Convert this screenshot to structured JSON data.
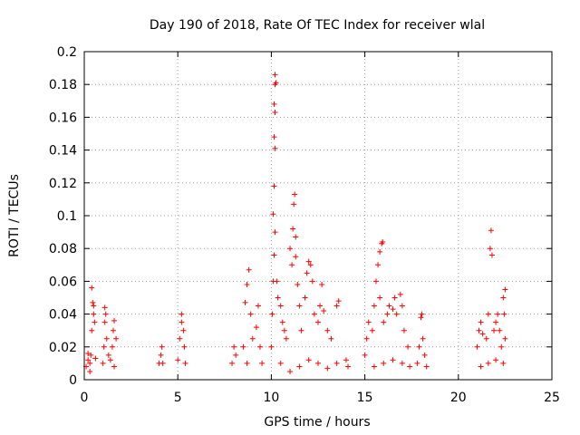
{
  "chart_data": {
    "type": "scatter",
    "title": "Day 190 of 2018, Rate Of TEC Index for receiver wlal",
    "xlabel": "GPS time / hours",
    "ylabel": "ROTI / TECUs",
    "xlim": [
      0,
      25
    ],
    "ylim": [
      0,
      0.2
    ],
    "x_ticks": [
      0,
      5,
      10,
      15,
      20,
      25
    ],
    "y_ticks": [
      0,
      0.02,
      0.04,
      0.06,
      0.08,
      0.1,
      0.12,
      0.14,
      0.16,
      0.18,
      0.2
    ],
    "grid": true,
    "marker": "+",
    "color": "#ff0000",
    "series": [
      {
        "name": "ROTI",
        "points": [
          [
            0.1,
            0.008
          ],
          [
            0.2,
            0.012
          ],
          [
            0.3,
            0.01
          ],
          [
            0.35,
            0.015
          ],
          [
            0.4,
            0.03
          ],
          [
            0.45,
            0.047
          ],
          [
            0.4,
            0.056
          ],
          [
            0.5,
            0.045
          ],
          [
            0.5,
            0.04
          ],
          [
            0.55,
            0.035
          ],
          [
            0.3,
            0.005
          ],
          [
            0.6,
            0.013
          ],
          [
            0.2,
            0.016
          ],
          [
            1.0,
            0.01
          ],
          [
            1.05,
            0.02
          ],
          [
            1.1,
            0.035
          ],
          [
            1.1,
            0.044
          ],
          [
            1.15,
            0.04
          ],
          [
            1.2,
            0.025
          ],
          [
            1.3,
            0.015
          ],
          [
            1.4,
            0.012
          ],
          [
            1.5,
            0.02
          ],
          [
            1.55,
            0.03
          ],
          [
            1.6,
            0.036
          ],
          [
            1.7,
            0.025
          ],
          [
            1.6,
            0.008
          ],
          [
            4.0,
            0.01
          ],
          [
            4.1,
            0.015
          ],
          [
            4.15,
            0.02
          ],
          [
            4.2,
            0.01
          ],
          [
            5.0,
            0.012
          ],
          [
            5.1,
            0.025
          ],
          [
            5.2,
            0.035
          ],
          [
            5.2,
            0.04
          ],
          [
            5.3,
            0.03
          ],
          [
            5.35,
            0.02
          ],
          [
            5.4,
            0.01
          ],
          [
            7.9,
            0.01
          ],
          [
            8.0,
            0.02
          ],
          [
            8.1,
            0.015
          ],
          [
            8.5,
            0.02
          ],
          [
            8.6,
            0.047
          ],
          [
            8.7,
            0.058
          ],
          [
            8.8,
            0.067
          ],
          [
            8.9,
            0.04
          ],
          [
            9.0,
            0.025
          ],
          [
            8.7,
            0.01
          ],
          [
            9.2,
            0.032
          ],
          [
            9.3,
            0.045
          ],
          [
            9.4,
            0.02
          ],
          [
            9.5,
            0.01
          ],
          [
            10.0,
            0.02
          ],
          [
            10.05,
            0.04
          ],
          [
            10.1,
            0.06
          ],
          [
            10.15,
            0.076
          ],
          [
            10.2,
            0.09
          ],
          [
            10.1,
            0.101
          ],
          [
            10.15,
            0.118
          ],
          [
            10.2,
            0.141
          ],
          [
            10.15,
            0.148
          ],
          [
            10.2,
            0.163
          ],
          [
            10.15,
            0.168
          ],
          [
            10.2,
            0.18
          ],
          [
            10.25,
            0.181
          ],
          [
            10.2,
            0.186
          ],
          [
            10.3,
            0.06
          ],
          [
            10.35,
            0.05
          ],
          [
            10.5,
            0.045
          ],
          [
            10.6,
            0.035
          ],
          [
            10.7,
            0.03
          ],
          [
            10.8,
            0.025
          ],
          [
            11.0,
            0.08
          ],
          [
            11.1,
            0.07
          ],
          [
            11.15,
            0.092
          ],
          [
            11.2,
            0.107
          ],
          [
            11.25,
            0.113
          ],
          [
            11.3,
            0.087
          ],
          [
            11.3,
            0.075
          ],
          [
            11.4,
            0.058
          ],
          [
            11.5,
            0.045
          ],
          [
            11.6,
            0.03
          ],
          [
            11.8,
            0.05
          ],
          [
            11.9,
            0.065
          ],
          [
            12.0,
            0.072
          ],
          [
            12.1,
            0.07
          ],
          [
            12.2,
            0.06
          ],
          [
            12.3,
            0.04
          ],
          [
            12.5,
            0.035
          ],
          [
            12.6,
            0.045
          ],
          [
            12.7,
            0.058
          ],
          [
            12.8,
            0.042
          ],
          [
            13.0,
            0.03
          ],
          [
            13.2,
            0.025
          ],
          [
            13.5,
            0.045
          ],
          [
            13.6,
            0.048
          ],
          [
            10.5,
            0.01
          ],
          [
            11.0,
            0.005
          ],
          [
            11.5,
            0.008
          ],
          [
            12.0,
            0.012
          ],
          [
            12.5,
            0.01
          ],
          [
            13.0,
            0.007
          ],
          [
            13.5,
            0.01
          ],
          [
            14.0,
            0.012
          ],
          [
            14.1,
            0.008
          ],
          [
            15.0,
            0.015
          ],
          [
            15.1,
            0.025
          ],
          [
            15.2,
            0.035
          ],
          [
            15.4,
            0.03
          ],
          [
            15.5,
            0.045
          ],
          [
            15.6,
            0.06
          ],
          [
            15.7,
            0.07
          ],
          [
            15.8,
            0.078
          ],
          [
            15.9,
            0.083
          ],
          [
            15.95,
            0.084
          ],
          [
            15.8,
            0.05
          ],
          [
            16.0,
            0.035
          ],
          [
            16.2,
            0.04
          ],
          [
            16.3,
            0.045
          ],
          [
            16.5,
            0.043
          ],
          [
            16.6,
            0.05
          ],
          [
            16.7,
            0.04
          ],
          [
            16.9,
            0.052
          ],
          [
            17.0,
            0.045
          ],
          [
            17.1,
            0.03
          ],
          [
            17.3,
            0.02
          ],
          [
            15.5,
            0.008
          ],
          [
            16.0,
            0.01
          ],
          [
            16.5,
            0.012
          ],
          [
            17.0,
            0.01
          ],
          [
            17.4,
            0.008
          ],
          [
            17.8,
            0.01
          ],
          [
            17.9,
            0.02
          ],
          [
            18.0,
            0.038
          ],
          [
            18.05,
            0.04
          ],
          [
            18.1,
            0.025
          ],
          [
            18.2,
            0.015
          ],
          [
            18.3,
            0.008
          ],
          [
            21.0,
            0.02
          ],
          [
            21.1,
            0.03
          ],
          [
            21.2,
            0.035
          ],
          [
            21.3,
            0.028
          ],
          [
            21.5,
            0.025
          ],
          [
            21.6,
            0.04
          ],
          [
            21.7,
            0.08
          ],
          [
            21.75,
            0.091
          ],
          [
            21.8,
            0.076
          ],
          [
            21.9,
            0.03
          ],
          [
            22.0,
            0.035
          ],
          [
            22.1,
            0.04
          ],
          [
            22.2,
            0.03
          ],
          [
            22.3,
            0.02
          ],
          [
            22.4,
            0.05
          ],
          [
            22.5,
            0.055
          ],
          [
            22.45,
            0.04
          ],
          [
            22.5,
            0.025
          ],
          [
            21.2,
            0.008
          ],
          [
            21.6,
            0.01
          ],
          [
            22.0,
            0.012
          ],
          [
            22.4,
            0.01
          ]
        ]
      }
    ]
  }
}
